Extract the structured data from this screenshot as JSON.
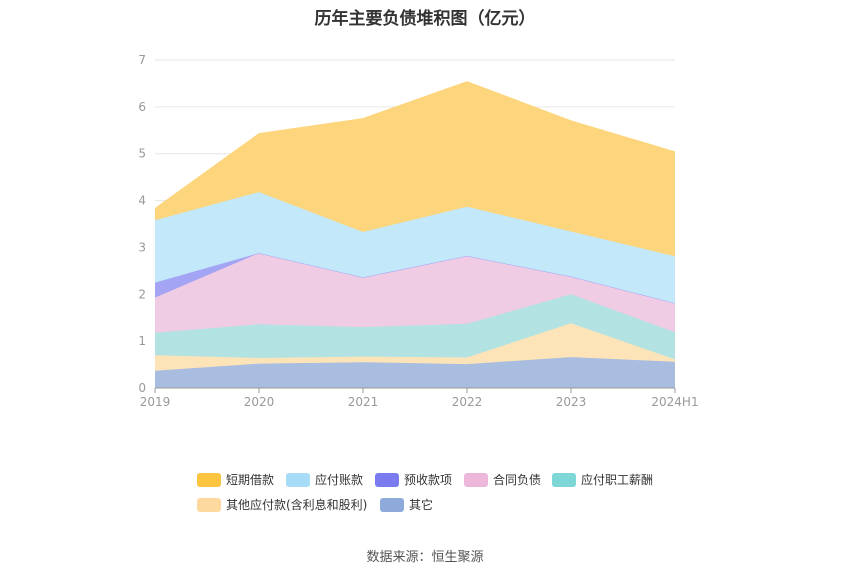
{
  "title": "历年主要负债堆积图（亿元）",
  "source": "数据来源：恒生聚源",
  "chart_data": {
    "type": "area",
    "stacked": true,
    "x": [
      "2019",
      "2020",
      "2021",
      "2022",
      "2023",
      "2024H1"
    ],
    "ylim": [
      0,
      7
    ],
    "yticks": [
      "0",
      "1",
      "2",
      "3",
      "4",
      "5",
      "6",
      "7"
    ],
    "grid": true,
    "legend_position": "bottom",
    "series": [
      {
        "name": "其它",
        "color": "#a8bde0",
        "legend_color": "#8eaadb",
        "values": [
          0.37,
          0.52,
          0.55,
          0.51,
          0.66,
          0.56
        ]
      },
      {
        "name": "其他应付款(含利息和股利)",
        "color": "#fde4b8",
        "legend_color": "#fdd9a0",
        "values": [
          0.33,
          0.12,
          0.12,
          0.14,
          0.72,
          0.05
        ]
      },
      {
        "name": "应付职工薪酬",
        "color": "#b3e2e2",
        "legend_color": "#7fd6d6",
        "values": [
          0.48,
          0.72,
          0.63,
          0.72,
          0.62,
          0.58
        ]
      },
      {
        "name": "合同负债",
        "color": "#f0cce4",
        "legend_color": "#edb6db",
        "values": [
          0.75,
          1.52,
          1.06,
          1.45,
          0.38,
          0.62
        ]
      },
      {
        "name": "预收款项",
        "color": "#a4a4f4",
        "legend_color": "#7b7bf0",
        "values": [
          0.32,
          0.0,
          0.0,
          0.0,
          0.0,
          0.0
        ]
      },
      {
        "name": "应付账款",
        "color": "#c2e8fa",
        "legend_color": "#a6dcf7",
        "values": [
          1.33,
          1.3,
          0.97,
          1.05,
          0.96,
          1.0
        ]
      },
      {
        "name": "短期借款",
        "color": "#fdd57c",
        "legend_color": "#fcc43f",
        "values": [
          0.25,
          1.25,
          2.42,
          2.67,
          2.36,
          2.23
        ]
      }
    ]
  }
}
